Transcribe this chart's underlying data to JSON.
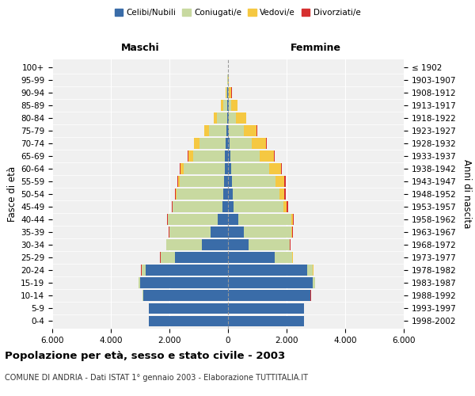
{
  "age_groups": [
    "0-4",
    "5-9",
    "10-14",
    "15-19",
    "20-24",
    "25-29",
    "30-34",
    "35-39",
    "40-44",
    "45-49",
    "50-54",
    "55-59",
    "60-64",
    "65-69",
    "70-74",
    "75-79",
    "80-84",
    "85-89",
    "90-94",
    "95-99",
    "100+"
  ],
  "birth_years": [
    "1998-2002",
    "1993-1997",
    "1988-1992",
    "1983-1987",
    "1978-1982",
    "1973-1977",
    "1968-1972",
    "1963-1967",
    "1958-1962",
    "1953-1957",
    "1948-1952",
    "1943-1947",
    "1938-1942",
    "1933-1937",
    "1928-1932",
    "1923-1927",
    "1918-1922",
    "1913-1917",
    "1908-1912",
    "1903-1907",
    "≤ 1902"
  ],
  "males_celibi": [
    2700,
    2700,
    2900,
    3000,
    2800,
    1800,
    900,
    600,
    350,
    180,
    150,
    140,
    120,
    100,
    80,
    50,
    30,
    25,
    15,
    8,
    3
  ],
  "males_coniugati": [
    5,
    5,
    20,
    50,
    150,
    500,
    1200,
    1400,
    1700,
    1700,
    1600,
    1500,
    1400,
    1100,
    900,
    600,
    350,
    150,
    50,
    6,
    2
  ],
  "males_vedovi": [
    1,
    1,
    2,
    3,
    5,
    5,
    5,
    5,
    10,
    20,
    30,
    60,
    100,
    150,
    180,
    150,
    100,
    60,
    20,
    5,
    1
  ],
  "males_divorziati": [
    0,
    1,
    2,
    3,
    5,
    10,
    15,
    20,
    20,
    30,
    30,
    40,
    30,
    20,
    15,
    10,
    10,
    5,
    2,
    0,
    0
  ],
  "females_nubili": [
    2600,
    2600,
    2800,
    2900,
    2700,
    1600,
    700,
    550,
    350,
    200,
    150,
    130,
    100,
    80,
    50,
    30,
    22,
    15,
    10,
    5,
    2
  ],
  "females_coniugate": [
    5,
    5,
    20,
    60,
    200,
    600,
    1400,
    1600,
    1800,
    1700,
    1600,
    1500,
    1300,
    1000,
    750,
    500,
    250,
    100,
    30,
    5,
    2
  ],
  "females_vedove": [
    1,
    2,
    3,
    5,
    10,
    10,
    20,
    40,
    60,
    100,
    180,
    300,
    400,
    500,
    500,
    450,
    350,
    200,
    80,
    12,
    2
  ],
  "females_divorziate": [
    0,
    1,
    2,
    5,
    10,
    15,
    25,
    35,
    40,
    50,
    50,
    55,
    40,
    25,
    15,
    10,
    10,
    5,
    2,
    0,
    0
  ],
  "colors_celibi": "#3a6ca8",
  "colors_coniugati": "#c8d9a0",
  "colors_vedovi": "#f5c842",
  "colors_divorziati": "#d63030",
  "xlim": 6000,
  "xticks": [
    -6000,
    -4000,
    -2000,
    0,
    2000,
    4000,
    6000
  ],
  "xticklabels": [
    "6.000",
    "4.000",
    "2.000",
    "0",
    "2.000",
    "4.000",
    "6.000"
  ],
  "title": "Popolazione per età, sesso e stato civile - 2003",
  "subtitle": "COMUNE DI ANDRIA - Dati ISTAT 1° gennaio 2003 - Elaborazione TUTTITALIA.IT",
  "ylabel_left": "Fasce di età",
  "ylabel_right": "Anni di nascita",
  "label_maschi": "Maschi",
  "label_femmine": "Femmine",
  "legend_labels": [
    "Celibi/Nubili",
    "Coniugati/e",
    "Vedovi/e",
    "Divorziati/e"
  ]
}
